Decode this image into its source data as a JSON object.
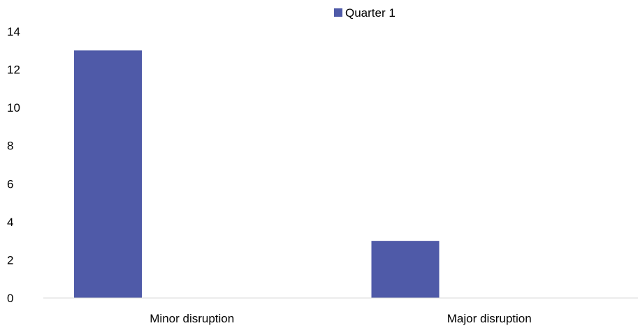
{
  "chart_data": {
    "type": "bar",
    "categories": [
      "Minor disruption",
      "Major disruption"
    ],
    "series": [
      {
        "name": "Quarter 1",
        "values": [
          13,
          3
        ],
        "color": "#4F5AA8"
      }
    ],
    "y_ticks": [
      "0",
      "2",
      "4",
      "6",
      "8",
      "10",
      "12",
      "14"
    ],
    "ylim": [
      0,
      14
    ],
    "grid": false,
    "legend_position": "top-center",
    "title": "",
    "xlabel": "",
    "ylabel": ""
  }
}
